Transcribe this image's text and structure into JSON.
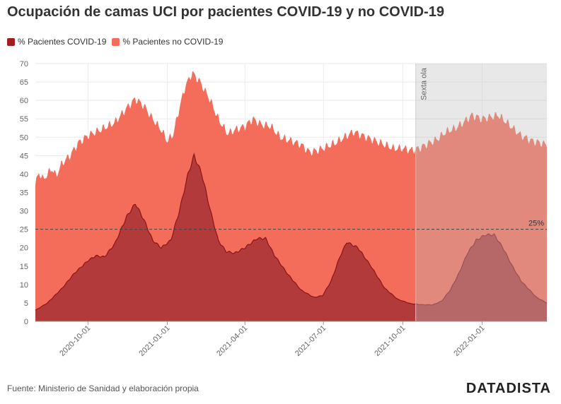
{
  "header": {
    "title": "Ocupación de camas UCI por pacientes COVID-19 y no COVID-19"
  },
  "footer": {
    "source": "Fuente: Ministerio de Sanidad y elaboración propia",
    "brand": "DATADISTA"
  },
  "chart_data": {
    "type": "area",
    "stacked": true,
    "title": "Ocupación de camas UCI por pacientes COVID-19 y no COVID-19",
    "ylim": [
      0,
      70
    ],
    "yticks": [
      0,
      5,
      10,
      15,
      20,
      25,
      30,
      35,
      40,
      45,
      50,
      55,
      60,
      65,
      70
    ],
    "xlim": [
      "2020-08-01",
      "2022-03-17"
    ],
    "xticks": [
      "2020-10-01",
      "2021-01-01",
      "2021-04-01",
      "2021-07-01",
      "2021-10-01",
      "2022-01-01"
    ],
    "grid": true,
    "legend": "top-left",
    "colors": {
      "covid": "#a11d21",
      "nocovid": "#f46d5a",
      "band": "#e6e6e6"
    },
    "series": [
      {
        "name": "% Pacientes COVID-19",
        "points": [
          [
            "2020-08-01",
            3
          ],
          [
            "2020-08-15",
            5
          ],
          [
            "2020-09-01",
            9
          ],
          [
            "2020-09-15",
            13
          ],
          [
            "2020-10-01",
            16.5
          ],
          [
            "2020-10-10",
            17.8
          ],
          [
            "2020-10-20",
            17.5
          ],
          [
            "2020-11-01",
            21
          ],
          [
            "2020-11-15",
            28.5
          ],
          [
            "2020-11-25",
            32
          ],
          [
            "2020-12-05",
            27.5
          ],
          [
            "2020-12-15",
            22
          ],
          [
            "2020-12-25",
            20
          ],
          [
            "2021-01-05",
            22
          ],
          [
            "2021-01-15",
            30
          ],
          [
            "2021-01-25",
            40
          ],
          [
            "2021-02-01",
            45
          ],
          [
            "2021-02-10",
            40
          ],
          [
            "2021-02-20",
            30
          ],
          [
            "2021-03-01",
            22
          ],
          [
            "2021-03-10",
            19
          ],
          [
            "2021-03-20",
            18.5
          ],
          [
            "2021-04-01",
            20
          ],
          [
            "2021-04-15",
            22.5
          ],
          [
            "2021-04-25",
            22.5
          ],
          [
            "2021-05-05",
            18
          ],
          [
            "2021-05-20",
            13
          ],
          [
            "2021-06-05",
            8.5
          ],
          [
            "2021-06-20",
            6.5
          ],
          [
            "2021-06-30",
            7
          ],
          [
            "2021-07-10",
            11
          ],
          [
            "2021-07-20",
            17.5
          ],
          [
            "2021-07-28",
            21.5
          ],
          [
            "2021-08-10",
            20
          ],
          [
            "2021-08-25",
            15
          ],
          [
            "2021-09-10",
            9
          ],
          [
            "2021-09-25",
            6
          ],
          [
            "2021-10-10",
            4.8
          ],
          [
            "2021-10-25",
            4.5
          ],
          [
            "2021-11-05",
            4.5
          ],
          [
            "2021-11-15",
            5.5
          ],
          [
            "2021-11-25",
            8.5
          ],
          [
            "2021-12-05",
            13
          ],
          [
            "2021-12-15",
            18.5
          ],
          [
            "2021-12-25",
            22
          ],
          [
            "2022-01-05",
            23.5
          ],
          [
            "2022-01-15",
            23.5
          ],
          [
            "2022-01-25",
            20
          ],
          [
            "2022-02-05",
            15
          ],
          [
            "2022-02-15",
            11
          ],
          [
            "2022-02-25",
            8.5
          ],
          [
            "2022-03-05",
            6.5
          ],
          [
            "2022-03-17",
            5
          ]
        ]
      },
      {
        "name": "% Pacientes no COVID-19",
        "total_points": [
          [
            "2020-08-01",
            37
          ],
          [
            "2020-08-05",
            40.5
          ],
          [
            "2020-08-10",
            38.5
          ],
          [
            "2020-08-15",
            40
          ],
          [
            "2020-08-20",
            41.5
          ],
          [
            "2020-08-25",
            39.5
          ],
          [
            "2020-09-01",
            43
          ],
          [
            "2020-09-10",
            45
          ],
          [
            "2020-09-20",
            48.5
          ],
          [
            "2020-10-01",
            50.5
          ],
          [
            "2020-10-15",
            52
          ],
          [
            "2020-11-01",
            54
          ],
          [
            "2020-11-15",
            58
          ],
          [
            "2020-11-25",
            60.5
          ],
          [
            "2020-12-05",
            58.5
          ],
          [
            "2020-12-15",
            55
          ],
          [
            "2020-12-25",
            52
          ],
          [
            "2021-01-01",
            49
          ],
          [
            "2021-01-08",
            51
          ],
          [
            "2021-01-15",
            58
          ],
          [
            "2021-01-22",
            64
          ],
          [
            "2021-01-30",
            67.5
          ],
          [
            "2021-02-08",
            65
          ],
          [
            "2021-02-20",
            60
          ],
          [
            "2021-03-01",
            55
          ],
          [
            "2021-03-12",
            51
          ],
          [
            "2021-03-20",
            52
          ],
          [
            "2021-04-01",
            53
          ],
          [
            "2021-04-10",
            55
          ],
          [
            "2021-04-20",
            53.5
          ],
          [
            "2021-05-01",
            53
          ],
          [
            "2021-05-12",
            50
          ],
          [
            "2021-05-25",
            49
          ],
          [
            "2021-06-05",
            48
          ],
          [
            "2021-06-15",
            46
          ],
          [
            "2021-06-25",
            46.5
          ],
          [
            "2021-07-05",
            47.5
          ],
          [
            "2021-07-15",
            48.5
          ],
          [
            "2021-07-25",
            50
          ],
          [
            "2021-08-05",
            51.5
          ],
          [
            "2021-08-20",
            50
          ],
          [
            "2021-09-05",
            48.5
          ],
          [
            "2021-09-20",
            47
          ],
          [
            "2021-10-01",
            47
          ],
          [
            "2021-10-10",
            46.5
          ],
          [
            "2021-10-20",
            47
          ],
          [
            "2021-11-01",
            48.5
          ],
          [
            "2021-11-10",
            49.5
          ],
          [
            "2021-11-20",
            51.5
          ],
          [
            "2021-12-01",
            52.5
          ],
          [
            "2021-12-10",
            54
          ],
          [
            "2021-12-20",
            56
          ],
          [
            "2022-01-01",
            55
          ],
          [
            "2022-01-10",
            55.5
          ],
          [
            "2022-01-20",
            56
          ],
          [
            "2022-02-01",
            53.5
          ],
          [
            "2022-02-15",
            50.5
          ],
          [
            "2022-02-28",
            49
          ],
          [
            "2022-03-10",
            48.5
          ],
          [
            "2022-03-17",
            48
          ]
        ]
      }
    ],
    "band": {
      "from": "2021-10-16",
      "to": "2022-03-17",
      "label": "Sexta ola"
    },
    "reference_line": {
      "value": 25,
      "label": "25%"
    }
  }
}
